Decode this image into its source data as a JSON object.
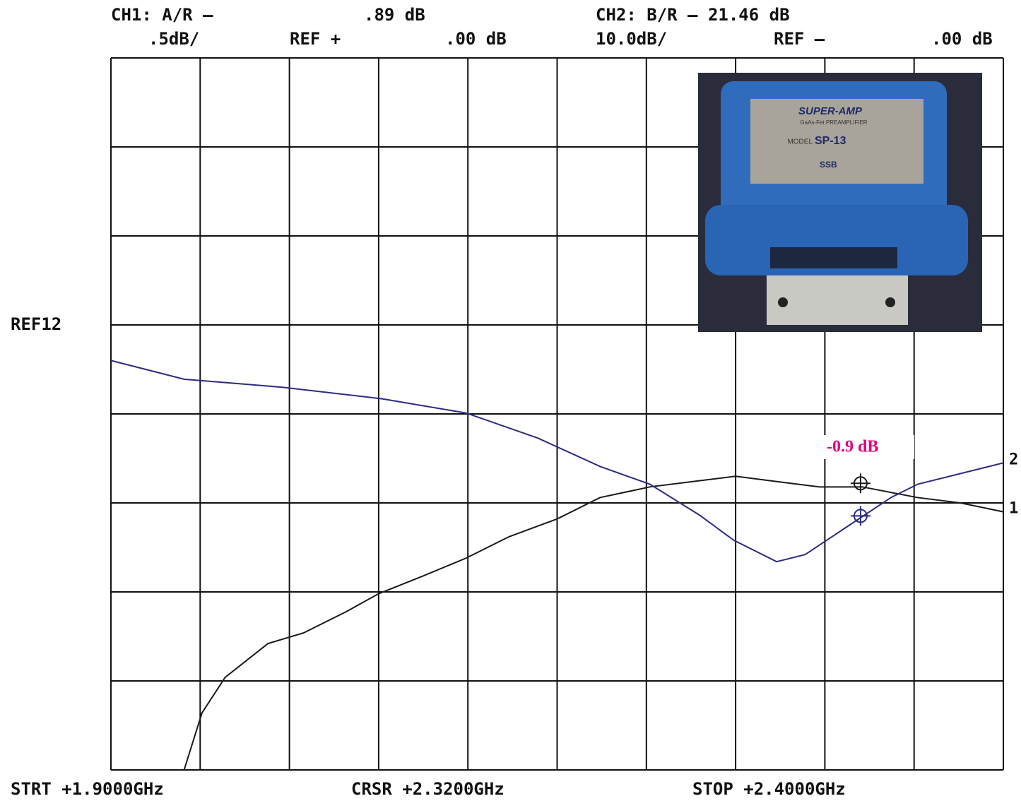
{
  "chart_data": {
    "type": "line",
    "header": {
      "ch1": "CH1: A/R –",
      "ch1_value": ".89 dB",
      "ch2": "CH2: B/R – 21.46 dB",
      "ch1_scale": ".5dB/",
      "ch1_ref": "REF +",
      "ch1_ref_value": ".00 dB",
      "ch2_scale": "10.0dB/",
      "ch2_ref": "REF –",
      "ch2_ref_value": ".00 dB"
    },
    "ref_label": "REF12",
    "footer": {
      "start": "STRT +1.9000GHz",
      "cursor": "CRSR +2.3200GHz",
      "stop": "STOP +2.4000GHz"
    },
    "annotation": "-0.9 dB",
    "xlim": [
      1.9,
      2.4
    ],
    "xticks": [
      1.9,
      1.95,
      2.0,
      2.05,
      2.1,
      2.15,
      2.2,
      2.25,
      2.3,
      2.35,
      2.4
    ],
    "ylim": [
      -2.5,
      1.5
    ],
    "yticks": [
      -2.5,
      -2,
      -1.5,
      -1,
      -0.5,
      0,
      0.5,
      1,
      1.5
    ],
    "y2lim": [
      -50,
      30
    ],
    "grid": true,
    "series": [
      {
        "name": "1",
        "color": "#1a1a1a",
        "axis": "y",
        "x": [
          1.941,
          1.951,
          1.964,
          1.988,
          2.008,
          2.032,
          2.05,
          2.075,
          2.099,
          2.123,
          2.15,
          2.174,
          2.202,
          2.226,
          2.25,
          2.273,
          2.297,
          2.321,
          2.352,
          2.376,
          2.4
        ],
        "values": [
          -2.5,
          -2.18,
          -1.98,
          -1.79,
          -1.73,
          -1.61,
          -1.51,
          -1.41,
          -1.31,
          -1.19,
          -1.09,
          -0.97,
          -0.91,
          -0.88,
          -0.85,
          -0.88,
          -0.91,
          -0.91,
          -0.97,
          -1.0,
          -1.05
        ]
      },
      {
        "name": "2",
        "color": "#2b2b84",
        "axis": "y2",
        "x": [
          1.9,
          1.941,
          1.996,
          2.052,
          2.099,
          2.139,
          2.174,
          2.202,
          2.23,
          2.249,
          2.273,
          2.289,
          2.313,
          2.337,
          2.352,
          2.4
        ],
        "values": [
          -4.0,
          -6.1,
          -7.0,
          -8.3,
          -9.9,
          -12.7,
          -15.9,
          -17.9,
          -21.4,
          -24.2,
          -26.6,
          -25.8,
          -22.6,
          -19.4,
          -17.9,
          -15.5
        ]
      }
    ],
    "markers": [
      {
        "x": 2.32,
        "y": -0.89,
        "axis": "y",
        "color": "#1a1a1a"
      },
      {
        "x": 2.32,
        "y": -21.46,
        "axis": "y2",
        "color": "#2b2b84"
      }
    ],
    "photo": {
      "brand": "SUPER-AMP",
      "product": "GaAs-Fet PREAMPLIFIER",
      "model_prefix": "MODEL",
      "model": "SP-13",
      "maker": "SSB"
    }
  }
}
